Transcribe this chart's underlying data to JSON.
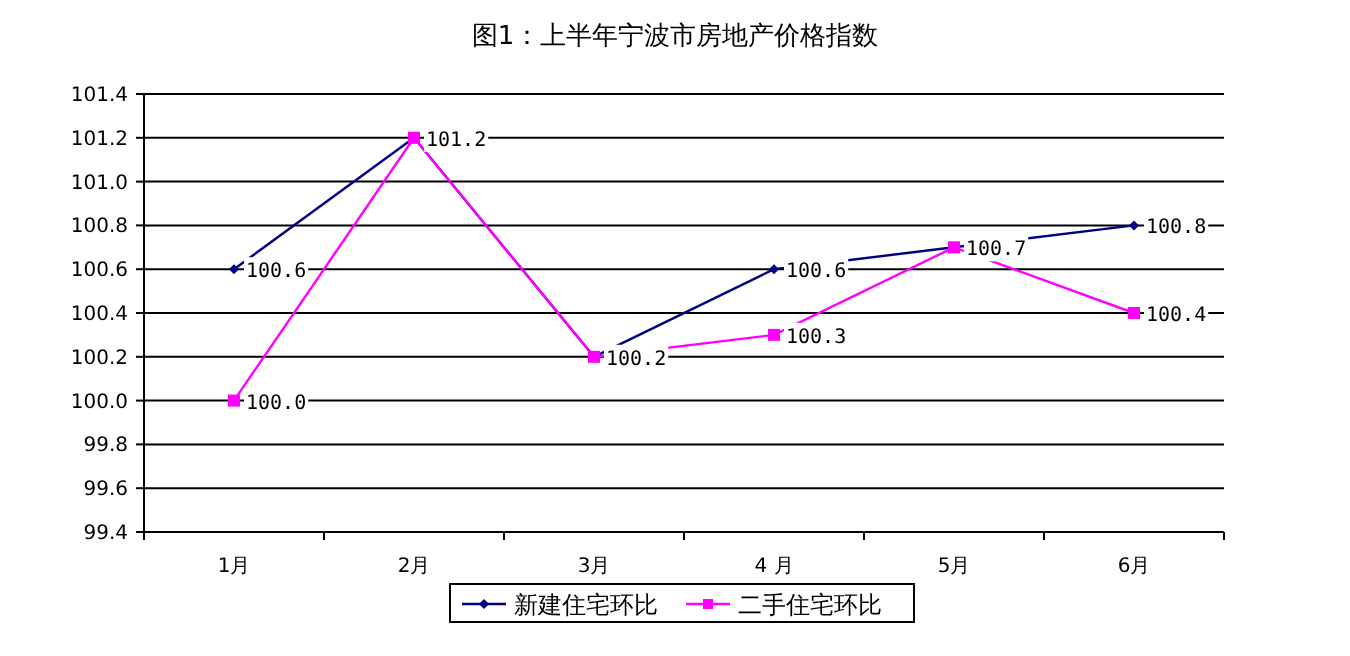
{
  "chart_data": {
    "type": "line",
    "title": "图1：上半年宁波市房地产价格指数",
    "categories": [
      "1月",
      "2月",
      "3月",
      "4 月",
      "5月",
      "6月"
    ],
    "series": [
      {
        "name": "新建住宅环比",
        "color": "#000080",
        "marker": "diamond",
        "values": [
          100.6,
          101.2,
          100.2,
          100.6,
          100.7,
          100.8
        ],
        "value_labels": [
          "100.6",
          null,
          null,
          "100.6",
          null,
          "100.8"
        ]
      },
      {
        "name": "二手住宅环比",
        "color": "#ff00ff",
        "marker": "square",
        "values": [
          100.0,
          101.2,
          100.2,
          100.3,
          100.7,
          100.4
        ],
        "value_labels": [
          "100.0",
          "101.2",
          "100.2",
          "100.3",
          "100.7",
          "100.4"
        ]
      }
    ],
    "ylim": [
      99.4,
      101.4
    ],
    "yticks": [
      {
        "value": 99.4,
        "label": "99.4"
      },
      {
        "value": 99.6,
        "label": "99.6"
      },
      {
        "value": 99.8,
        "label": "99.8"
      },
      {
        "value": 100,
        "label": "100.0"
      },
      {
        "value": 100.2,
        "label": "100.2"
      },
      {
        "value": 100.4,
        "label": "100.4"
      },
      {
        "value": 100.6,
        "label": "100.6"
      },
      {
        "value": 100.8,
        "label": "100.8"
      },
      {
        "value": 101,
        "label": "101.0"
      },
      {
        "value": 101.2,
        "label": "101.2"
      },
      {
        "value": 101.4,
        "label": "101.4"
      }
    ],
    "grid": "y",
    "legend": "bottom"
  }
}
